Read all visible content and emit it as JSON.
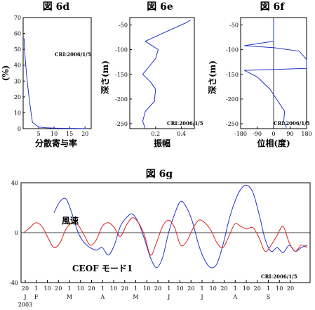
{
  "chart_data": [
    {
      "id": "6d",
      "type": "line",
      "title": "図 6d",
      "xlabel": "分散寄与率",
      "ylabel": "(%)",
      "xlim": [
        0,
        22
      ],
      "ylim": [
        0,
        70
      ],
      "xticks": [
        5,
        10,
        15,
        20
      ],
      "yticks": [
        0,
        10,
        20,
        30,
        40,
        50,
        60,
        70
      ],
      "annotation": "CRI:2006/1/5",
      "series": [
        {
          "values_x": [
            0.3,
            0.6,
            1.2,
            2.0,
            3.0,
            5.0,
            7.0,
            10.0,
            14.0,
            18.0,
            20.5
          ],
          "values_y": [
            57,
            46,
            32,
            18,
            4,
            1,
            0.6,
            0.3,
            0.2,
            0.1,
            0.05
          ]
        }
      ]
    },
    {
      "id": "6e",
      "type": "line",
      "title": "図 6e",
      "xlabel": "振幅",
      "ylabel": "深さ(m)",
      "xlim": [
        0,
        0.5
      ],
      "ylim": [
        -260,
        -35
      ],
      "xticks": [
        0.2,
        0.4
      ],
      "yticks": [
        -50,
        -100,
        -150,
        -200,
        -250
      ],
      "annotation": "CRI:2006/1/5",
      "series": [
        {
          "values_x": [
            0.47,
            0.44,
            0.12,
            0.22,
            0.2,
            0.1,
            0.16,
            0.2,
            0.19,
            0.12,
            0.1,
            0.12
          ],
          "values_y": [
            -40,
            -45,
            -83,
            -100,
            -118,
            -150,
            -165,
            -180,
            -205,
            -225,
            -245,
            -260
          ]
        }
      ]
    },
    {
      "id": "6f",
      "type": "line",
      "title": "図 6f",
      "xlabel": "位相(度)",
      "ylabel": "深さ(m)",
      "xlim": [
        -180,
        180
      ],
      "ylim": [
        -260,
        -35
      ],
      "xticks": [
        -180,
        -90,
        0,
        90,
        180
      ],
      "yticks": [
        -50,
        -100,
        -150,
        -200,
        -250
      ],
      "annotation": "CRI:2006/1/5",
      "series": [
        {
          "values_x": [
            0,
            0,
            0,
            -160,
            0,
            140,
            180,
            180,
            180,
            -160,
            -90,
            -20,
            60,
            55,
            70
          ],
          "values_y": [
            -40,
            -70,
            -83,
            -92,
            -96,
            -103,
            -120,
            -130,
            -138,
            -142,
            -155,
            -180,
            -225,
            -245,
            -258
          ]
        }
      ]
    },
    {
      "id": "6g",
      "type": "line",
      "title": "図 6g",
      "ylim": [
        -40,
        40
      ],
      "yticks": [
        -40,
        0,
        40
      ],
      "xtick_labels": [
        "20",
        "1",
        "10",
        "20",
        "1",
        "10",
        "20",
        "1",
        "10",
        "20",
        "1",
        "10",
        "20",
        "1",
        "10",
        "20",
        "1",
        "10",
        "20",
        "1",
        "10",
        "20",
        "1",
        "10",
        "20"
      ],
      "month_labels": [
        "J",
        "F",
        "M",
        "A",
        "M",
        "J",
        "J",
        "A",
        "S"
      ],
      "year_label": "2003",
      "annotation": "CRI:2006/1/5",
      "series": [
        {
          "name": "風速",
          "values": [
            null,
            null,
            null,
            null,
            null,
            16,
            25,
            27,
            15,
            0,
            -8,
            -12,
            -14,
            -12,
            -18,
            -10,
            5,
            12,
            15,
            8,
            -5,
            -20,
            -28,
            -20,
            0,
            15,
            25,
            20,
            8,
            -10,
            -22,
            -28,
            -25,
            -10,
            10,
            25,
            35,
            38,
            32,
            15,
            -5,
            -15,
            -12,
            -16,
            -10,
            -15,
            -12,
            -10
          ]
        },
        {
          "name": "CEOF モード1",
          "values": [
            0,
            4,
            8,
            5,
            -4,
            -12,
            -8,
            3,
            8,
            6,
            -2,
            -10,
            -6,
            5,
            8,
            4,
            -3,
            6,
            12,
            8,
            -2,
            -18,
            -8,
            5,
            10,
            4,
            -10,
            -7,
            3,
            10,
            8,
            2,
            -8,
            -12,
            -3,
            7,
            5,
            3,
            4,
            -4,
            -15,
            -10,
            -2,
            5,
            -8,
            -15,
            -10,
            -12
          ]
        }
      ]
    }
  ]
}
